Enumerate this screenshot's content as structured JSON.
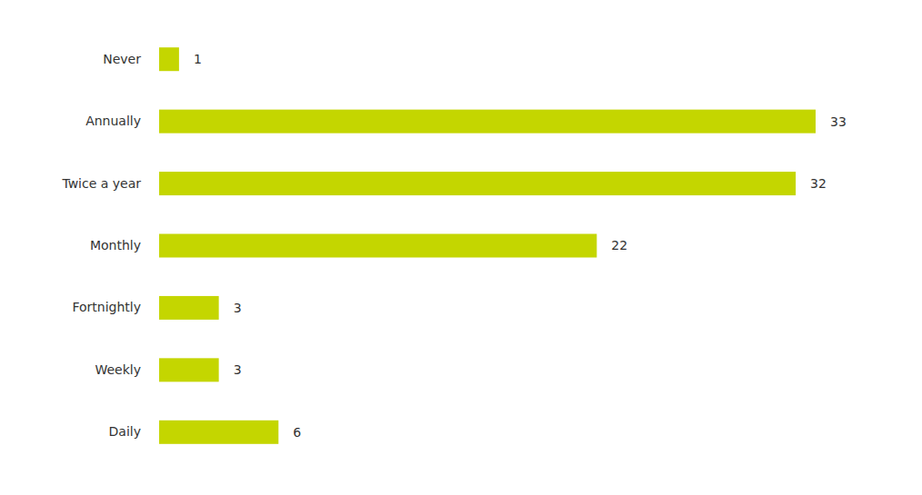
{
  "chart_data": {
    "type": "bar",
    "orientation": "horizontal",
    "categories": [
      "Never",
      "Annually",
      "Twice a year",
      "Monthly",
      "Fortnightly",
      "Weekly",
      "Daily"
    ],
    "values": [
      1,
      33,
      32,
      22,
      3,
      3,
      6
    ],
    "color": "#c4d600",
    "data_labels": true,
    "tick_labels": "y",
    "grid": false
  }
}
